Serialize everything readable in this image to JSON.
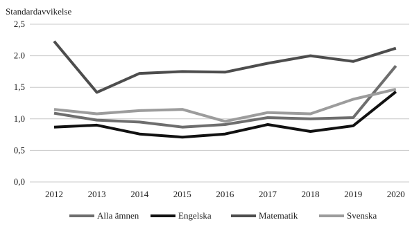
{
  "chart_data": {
    "type": "line",
    "ylabel": "Standardavvikelse",
    "xlabel": "",
    "title": "",
    "categories": [
      "2012",
      "2013",
      "2014",
      "2015",
      "2016",
      "2017",
      "2018",
      "2019",
      "2020"
    ],
    "ylim": [
      0,
      2.5
    ],
    "yticks": [
      0,
      0.5,
      1.0,
      1.5,
      2.0,
      2.5
    ],
    "ytick_labels": [
      "0,0",
      "0,5",
      "1,0",
      "1,5",
      "2.0",
      "2,5"
    ],
    "grid": "horizontal",
    "legend_position": "bottom",
    "series": [
      {
        "name": "Alla ämnen",
        "color": "#6e6e6e",
        "values": [
          1.09,
          0.98,
          0.95,
          0.87,
          0.91,
          1.02,
          1.0,
          1.02,
          1.84
        ]
      },
      {
        "name": "Engelska",
        "color": "#111111",
        "values": [
          0.87,
          0.9,
          0.76,
          0.71,
          0.76,
          0.91,
          0.8,
          0.89,
          1.43
        ]
      },
      {
        "name": "Matematik",
        "color": "#4d4d4d",
        "values": [
          2.23,
          1.42,
          1.72,
          1.75,
          1.74,
          1.88,
          2.0,
          1.91,
          2.12
        ]
      },
      {
        "name": "Svenska",
        "color": "#9c9c9c",
        "values": [
          1.15,
          1.08,
          1.13,
          1.15,
          0.96,
          1.1,
          1.08,
          1.31,
          1.47
        ]
      }
    ]
  }
}
